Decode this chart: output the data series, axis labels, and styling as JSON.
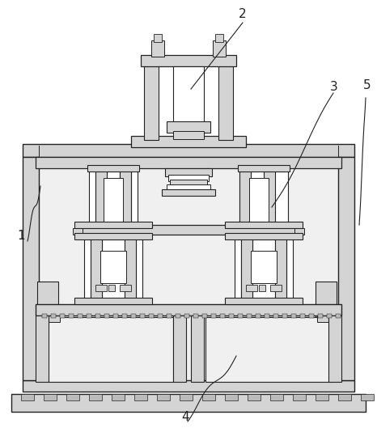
{
  "bg": "#ffffff",
  "lc": "#222222",
  "fg": "#d4d4d4",
  "fl": "#f0f0f0",
  "fw": "#ffffff",
  "fd": "#666666"
}
